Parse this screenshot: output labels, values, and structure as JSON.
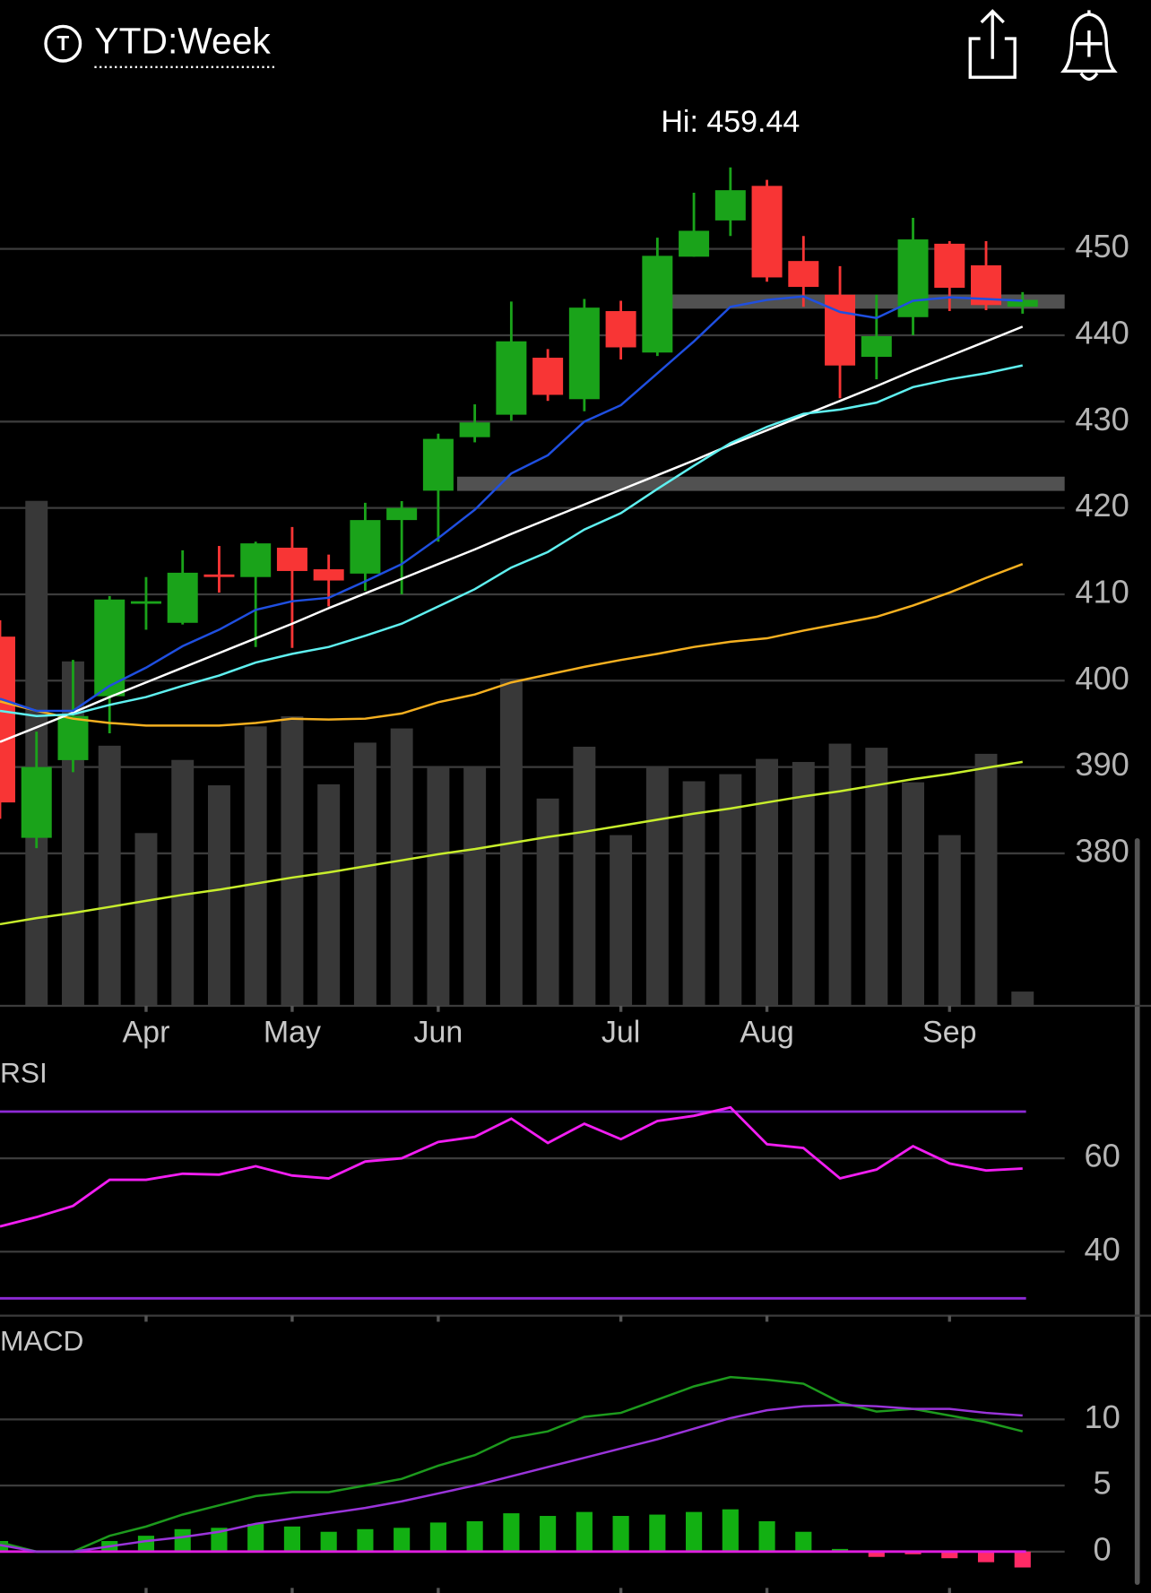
{
  "header": {
    "icon_letter": "T",
    "title": "YTD:Week"
  },
  "chart_data": [
    {
      "type": "candlestick",
      "annotation": "Hi: 459.44",
      "categories": [
        null,
        null,
        null,
        null,
        "Apr",
        null,
        null,
        null,
        "May",
        null,
        null,
        null,
        "Jun",
        null,
        null,
        null,
        null,
        "Jul",
        null,
        null,
        null,
        "Aug",
        null,
        null,
        null,
        null,
        "Sep",
        null,
        null
      ],
      "open": [
        405.1,
        381.8,
        390.8,
        398.2,
        409.0,
        406.7,
        412.3,
        412.0,
        415.4,
        412.9,
        412.4,
        418.6,
        422.0,
        428.2,
        430.8,
        437.4,
        432.6,
        442.8,
        438.0,
        449.1,
        453.3,
        457.3,
        448.6,
        444.7,
        437.5,
        442.1,
        450.6,
        448.1,
        443.3
      ],
      "high": [
        407.0,
        394.1,
        402.4,
        409.8,
        412.0,
        415.1,
        415.6,
        416.1,
        417.8,
        414.6,
        420.6,
        420.8,
        428.6,
        432.0,
        443.9,
        438.4,
        444.2,
        444.0,
        451.3,
        456.5,
        459.44,
        458.0,
        451.5,
        448.0,
        444.7,
        453.6,
        450.9,
        450.9,
        445.0
      ],
      "low": [
        384.0,
        380.6,
        389.4,
        393.9,
        405.9,
        406.5,
        410.2,
        403.9,
        403.8,
        408.6,
        410.4,
        410.0,
        416.1,
        427.6,
        430.1,
        432.4,
        431.2,
        437.2,
        437.6,
        449.1,
        451.5,
        446.2,
        443.3,
        432.7,
        434.9,
        440.0,
        442.8,
        442.9,
        442.5
      ],
      "close": [
        385.9,
        390.0,
        395.9,
        409.4,
        409.2,
        412.5,
        412.1,
        415.9,
        412.7,
        411.6,
        418.6,
        420.0,
        428.0,
        429.9,
        439.3,
        433.1,
        443.2,
        438.6,
        449.2,
        452.1,
        456.8,
        446.7,
        445.6,
        436.5,
        439.9,
        451.1,
        445.5,
        443.5,
        444.1
      ],
      "up_color": "#1aa31a",
      "down_color": "#f83535",
      "ylim": [
        362.35,
        467.06
      ],
      "yticks": [
        380,
        390,
        400,
        410,
        420,
        430,
        440,
        450
      ],
      "grid": true,
      "levels": [
        443.9,
        422.8
      ],
      "level_color": "#5a5a5a",
      "volume": {
        "color": "#383838",
        "ylim": [
          0,
          890
        ],
        "values": [
          null,
          497,
          339,
          256,
          170,
          242,
          217,
          275,
          285,
          218,
          259,
          273,
          235,
          235,
          322,
          204,
          255,
          168,
          235,
          221,
          228,
          243,
          240,
          258,
          254,
          220,
          168,
          248,
          14
        ]
      },
      "overlays": [
        {
          "color": "#c8ee2c",
          "values": [
            371.8,
            372.5,
            373.1,
            373.8,
            374.5,
            375.2,
            375.8,
            376.5,
            377.2,
            377.8,
            378.5,
            379.2,
            379.9,
            380.5,
            381.2,
            381.9,
            382.5,
            383.2,
            383.9,
            384.6,
            385.2,
            385.9,
            386.6,
            387.2,
            387.9,
            388.6,
            389.2,
            389.9,
            390.6
          ]
        },
        {
          "color": "#f5b020",
          "values": [
            397.6,
            396.5,
            395.6,
            395.1,
            394.8,
            394.8,
            394.8,
            395.1,
            395.6,
            395.5,
            395.6,
            396.2,
            397.5,
            398.4,
            399.8,
            400.7,
            401.6,
            402.4,
            403.1,
            403.9,
            404.5,
            404.9,
            405.8,
            406.6,
            407.4,
            408.7,
            410.2,
            411.9,
            413.5
          ]
        },
        {
          "color": "#ffffff",
          "values": [
            392.9,
            394.6,
            396.3,
            398.1,
            399.8,
            401.5,
            403.2,
            404.9,
            406.6,
            408.4,
            410.1,
            411.8,
            413.5,
            415.2,
            417.0,
            418.7,
            420.4,
            422.1,
            423.8,
            425.5,
            427.3,
            429.0,
            430.7,
            432.4,
            434.1,
            435.9,
            437.6,
            439.3,
            441.0
          ]
        },
        {
          "color": "#5ff0f0",
          "values": [
            396.5,
            395.9,
            396.1,
            397.2,
            398.1,
            399.4,
            400.6,
            402.1,
            403.1,
            403.9,
            405.2,
            406.6,
            408.6,
            410.6,
            413.1,
            414.9,
            417.5,
            419.4,
            422.2,
            424.9,
            427.5,
            429.4,
            430.9,
            431.4,
            432.2,
            434.0,
            434.9,
            435.6,
            436.5
          ]
        },
        {
          "color": "#1f4fe0",
          "values": [
            397.9,
            396.5,
            396.5,
            399.4,
            401.5,
            404.0,
            405.9,
            408.2,
            409.2,
            409.6,
            411.5,
            413.5,
            416.5,
            419.8,
            424.0,
            426.1,
            430.0,
            431.9,
            435.6,
            439.3,
            443.3,
            444.1,
            444.5,
            442.7,
            442.0,
            444.0,
            444.4,
            444.2,
            444.0
          ]
        }
      ]
    },
    {
      "type": "line",
      "title": "RSI",
      "values": [
        45.4,
        47.4,
        49.8,
        55.4,
        55.4,
        56.7,
        56.5,
        58.3,
        56.3,
        55.7,
        59.3,
        60.0,
        63.5,
        64.6,
        68.5,
        63.3,
        67.4,
        64.1,
        68.0,
        69.1,
        70.9,
        63.0,
        62.2,
        55.7,
        57.6,
        62.6,
        58.9,
        57.4,
        57.8
      ],
      "color": "#f21ef2",
      "levels": [
        70,
        30
      ],
      "level_color": "#8e2ad6",
      "ylim": [
        26.3,
        80.7
      ],
      "yticks": [
        40,
        60
      ],
      "grid": true
    },
    {
      "type": "macd",
      "title": "MACD",
      "series": [
        {
          "color": "#1d9a1d",
          "values": [
            0.7,
            0,
            0,
            1.2,
            1.9,
            2.8,
            3.5,
            4.2,
            4.5,
            4.5,
            5.0,
            5.5,
            6.5,
            7.3,
            8.6,
            9.1,
            10.2,
            10.5,
            11.5,
            12.5,
            13.2,
            13.0,
            12.7,
            11.3,
            10.6,
            10.8,
            10.3,
            9.8,
            9.1
          ]
        },
        {
          "color": "#9a34da",
          "values": [
            0.5,
            0,
            0,
            0.4,
            0.8,
            1.1,
            1.5,
            2.1,
            2.5,
            2.9,
            3.3,
            3.8,
            4.4,
            5.0,
            5.7,
            6.4,
            7.1,
            7.8,
            8.5,
            9.3,
            10.1,
            10.7,
            11.0,
            11.1,
            11.0,
            10.8,
            10.8,
            10.5,
            10.3
          ]
        }
      ],
      "histogram": {
        "up_color": "#12b012",
        "down_color": "#ff2a66",
        "values": [
          0.8,
          0,
          0,
          0.8,
          1.2,
          1.7,
          1.8,
          2.1,
          1.9,
          1.5,
          1.7,
          1.8,
          2.2,
          2.3,
          2.9,
          2.7,
          3.0,
          2.7,
          2.8,
          3.0,
          3.2,
          2.3,
          1.5,
          0.2,
          -0.4,
          -0.2,
          -0.5,
          -0.8,
          -1.2
        ]
      },
      "zero_color": "#e01ee0",
      "ylim": [
        -2.9,
        16.7
      ],
      "yticks": [
        0,
        5,
        10
      ],
      "grid": true
    }
  ]
}
